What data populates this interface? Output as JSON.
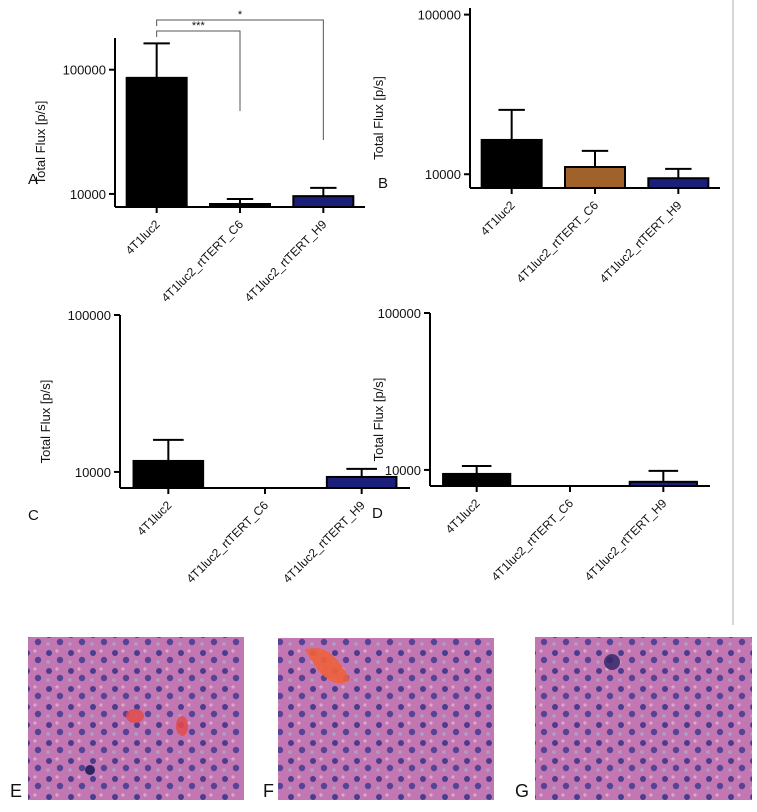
{
  "chart_data": [
    {
      "type": "bar",
      "panel_label": "A",
      "y_label": "Total Flux [p/s]",
      "log_scale": true,
      "categories": [
        "4T1luc2",
        "4T1luc2_rtTERT_C6",
        "4T1luc2_rtTERT_H9"
      ],
      "values": [
        86000,
        8300,
        9600
      ],
      "errors": [
        77000,
        800,
        1600
      ],
      "colors": [
        "#000000",
        "#000000",
        "#1b1f7a"
      ],
      "ylim": [
        7850,
        180000
      ],
      "yticks": [
        10000,
        100000
      ],
      "annotations": [
        {
          "label": "***",
          "between": [
            "4T1luc2",
            "4T1luc2_rtTERT_C6"
          ]
        },
        {
          "label": "*",
          "between": [
            "4T1luc2",
            "4T1luc2_rtTERT_H9"
          ]
        }
      ]
    },
    {
      "type": "bar",
      "panel_label": "B",
      "y_label": "Total Flux [p/s]",
      "log_scale": true,
      "categories": [
        "4T1luc2",
        "4T1luc2_rtTERT_C6",
        "4T1luc2_rtTERT_H9"
      ],
      "values": [
        16400,
        11100,
        9440
      ],
      "errors": [
        8900,
        2900,
        1360
      ],
      "colors": [
        "#000000",
        "#a0622a",
        "#1b1f7a"
      ],
      "ylim": [
        8200,
        110000
      ],
      "yticks": [
        10000,
        100000
      ]
    },
    {
      "type": "bar",
      "panel_label": "C",
      "y_label": "Total Flux [p/s]",
      "log_scale": true,
      "categories": [
        "4T1luc2",
        "4T1luc2_rtTERT_C6",
        "4T1luc2_rtTERT_H9"
      ],
      "values": [
        11750,
        null,
        9290
      ],
      "errors": [
        4250,
        null,
        1160
      ],
      "colors": [
        "#000000",
        "#a0622a",
        "#1b1f7a"
      ],
      "ylim": [
        7900,
        100000
      ],
      "yticks": [
        10000,
        100000
      ]
    },
    {
      "type": "bar",
      "panel_label": "D",
      "y_label": "Total Flux [p/s]",
      "log_scale": true,
      "categories": [
        "4T1luc2",
        "4T1luc2_rtTERT_C6",
        "4T1luc2_rtTERT_H9"
      ],
      "values": [
        9430,
        null,
        8400
      ],
      "errors": [
        1170,
        null,
        1460
      ],
      "colors": [
        "#000000",
        "#a0622a",
        "#1b1f7a"
      ],
      "ylim": [
        7900,
        100000
      ],
      "yticks": [
        10000,
        100000
      ]
    }
  ],
  "images": [
    {
      "panel_label": "E"
    },
    {
      "panel_label": "F"
    },
    {
      "panel_label": "G"
    }
  ]
}
